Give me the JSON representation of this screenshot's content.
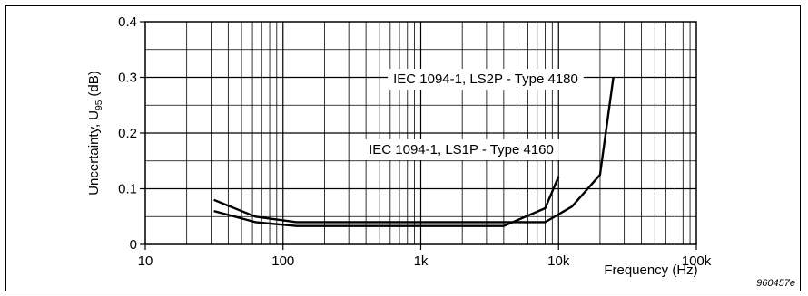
{
  "chart_data": {
    "type": "line",
    "xscale": "log",
    "xlim": [
      10,
      100000
    ],
    "ylim": [
      0,
      0.4
    ],
    "xlabel": "Frequency (Hz)",
    "ylabel_main": "Uncertainty, U",
    "ylabel_sub": "95",
    "ylabel_unit": " (dB)",
    "x_ticks": [
      10,
      100,
      1000,
      10000,
      100000
    ],
    "x_tick_labels": [
      "10",
      "100",
      "1k",
      "10k",
      "100k"
    ],
    "y_ticks": [
      0,
      0.1,
      0.2,
      0.3,
      0.4
    ],
    "y_tick_labels": [
      "0",
      "0.1",
      "0.2",
      "0.3",
      "0.4"
    ],
    "grid": true,
    "series": [
      {
        "name": "IEC 1094-1, LS1P - Type 4160",
        "x": [
          31.5,
          63,
          125,
          4000,
          8000,
          10000
        ],
        "y": [
          0.06,
          0.04,
          0.033,
          0.033,
          0.065,
          0.122
        ]
      },
      {
        "name": "IEC 1094-1, LS2P - Type 4180",
        "x": [
          31.5,
          63,
          125,
          4000,
          8000,
          12500,
          20000,
          25000
        ],
        "y": [
          0.08,
          0.05,
          0.04,
          0.04,
          0.04,
          0.068,
          0.125,
          0.3
        ]
      }
    ],
    "figure_id": "960457e"
  }
}
